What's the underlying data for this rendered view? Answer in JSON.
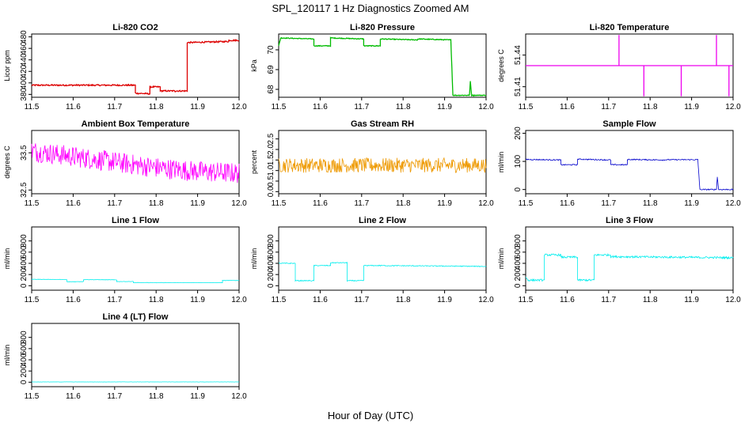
{
  "figure": {
    "title": "SPL_120117  1 Hz Diagnostics Zoomed AM",
    "xlabel": "Hour of Day (UTC)"
  },
  "chart_data": [
    {
      "type": "line",
      "title": "Li-820 CO2",
      "ylabel": "Licor ppm",
      "color": "#dd0000",
      "xlim": [
        11.5,
        12.0
      ],
      "ylim": [
        375,
        485
      ],
      "xticks": [
        11.5,
        11.6,
        11.7,
        11.8,
        11.9,
        12.0
      ],
      "xticklabels": [
        "11.5",
        "11.6",
        "11.7",
        "11.8",
        "11.9",
        "12.0"
      ],
      "yticks": [
        380,
        400,
        420,
        440,
        460,
        480
      ],
      "yticklabels": [
        "380",
        "400",
        "420",
        "440",
        "460",
        "480"
      ],
      "noise": 1.2,
      "x": [
        11.5,
        11.75,
        11.75,
        11.785,
        11.785,
        11.81,
        11.81,
        11.845,
        11.845,
        11.875,
        11.875,
        11.975,
        11.975,
        12.0
      ],
      "y": [
        396,
        396,
        382,
        381,
        393,
        393,
        386,
        386,
        386,
        386,
        470,
        472,
        474,
        474
      ]
    },
    {
      "type": "line",
      "title": "Li-820 Pressure",
      "ylabel": "kPa",
      "color": "#00bb00",
      "xlim": [
        11.5,
        12.0
      ],
      "ylim": [
        67.6,
        70.8
      ],
      "xticks": [
        11.5,
        11.6,
        11.7,
        11.8,
        11.9,
        12.0
      ],
      "xticklabels": [
        "11.5",
        "11.6",
        "11.7",
        "11.8",
        "11.9",
        "12.0"
      ],
      "yticks": [
        68,
        69,
        70
      ],
      "yticklabels": [
        "68",
        "69",
        "70"
      ],
      "noise": 0.02,
      "x": [
        11.5,
        11.505,
        11.585,
        11.585,
        11.625,
        11.625,
        11.705,
        11.705,
        11.745,
        11.745,
        11.835,
        11.835,
        11.915,
        11.92,
        11.96,
        11.962,
        11.965,
        11.97,
        12.0
      ],
      "y": [
        70.2,
        70.6,
        70.55,
        70.2,
        70.2,
        70.6,
        70.55,
        70.2,
        70.2,
        70.55,
        70.5,
        70.55,
        70.5,
        67.7,
        67.7,
        68.4,
        67.7,
        67.7,
        67.7
      ]
    },
    {
      "type": "line",
      "title": "Li-820 Temperature",
      "ylabel": "degrees C",
      "color": "#ee00ee",
      "xlim": [
        11.5,
        12.0
      ],
      "ylim": [
        51.4,
        51.46
      ],
      "xticks": [
        11.5,
        11.6,
        11.7,
        11.8,
        11.9,
        12.0
      ],
      "xticklabels": [
        "11.5",
        "11.6",
        "11.7",
        "11.8",
        "11.9",
        "12.0"
      ],
      "yticks": [
        51.41,
        51.44
      ],
      "yticklabels": [
        "51.41",
        "51.44"
      ],
      "noise": 0,
      "x": [
        11.5,
        11.725,
        11.725,
        11.725,
        11.785,
        11.785,
        11.785,
        11.875,
        11.875,
        11.875,
        11.96,
        11.96,
        11.96,
        11.99,
        11.99,
        11.99,
        12.0
      ],
      "y": [
        51.43,
        51.43,
        51.459,
        51.43,
        51.43,
        51.401,
        51.43,
        51.43,
        51.401,
        51.43,
        51.43,
        51.459,
        51.43,
        51.43,
        51.401,
        51.43,
        51.43
      ]
    },
    {
      "type": "line",
      "title": "Ambient Box Temperature",
      "ylabel": "degrees C",
      "color": "#ff00ff",
      "xlim": [
        11.5,
        12.0
      ],
      "ylim": [
        32.4,
        34.1
      ],
      "xticks": [
        11.5,
        11.6,
        11.7,
        11.8,
        11.9,
        12.0
      ],
      "xticklabels": [
        "11.5",
        "11.6",
        "11.7",
        "11.8",
        "11.9",
        "12.0"
      ],
      "yticks": [
        32.5,
        33.5
      ],
      "yticklabels": [
        "32.5",
        "33.5"
      ],
      "noise": 0.28,
      "x": [
        11.5,
        11.6,
        11.7,
        11.8,
        11.9,
        12.0
      ],
      "y": [
        33.55,
        33.4,
        33.25,
        33.1,
        33.0,
        32.95
      ]
    },
    {
      "type": "line",
      "title": "Gas Stream RH",
      "ylabel": "percent",
      "color": "#ee9900",
      "xlim": [
        11.5,
        12.0
      ],
      "ylim": [
        -0.1,
        2.9
      ],
      "xticks": [
        11.5,
        11.6,
        11.7,
        11.8,
        11.9,
        12.0
      ],
      "xticklabels": [
        "11.5",
        "11.6",
        "11.7",
        "11.8",
        "11.9",
        "12.0"
      ],
      "yticks": [
        0.0,
        0.5,
        1.0,
        1.5,
        2.0,
        2.5
      ],
      "yticklabels": [
        "0.0",
        "0.5",
        "1.0",
        "1.5",
        "2.0",
        "2.5"
      ],
      "noise": 0.35,
      "x": [
        11.5,
        11.6,
        11.7,
        11.8,
        11.9,
        12.0
      ],
      "y": [
        1.25,
        1.25,
        1.25,
        1.25,
        1.25,
        1.25
      ]
    },
    {
      "type": "line",
      "title": "Sample Flow",
      "ylabel": "ml/min",
      "color": "#0000cc",
      "xlim": [
        11.5,
        12.0
      ],
      "ylim": [
        -15,
        210
      ],
      "xticks": [
        11.5,
        11.6,
        11.7,
        11.8,
        11.9,
        12.0
      ],
      "xticklabels": [
        "11.5",
        "11.6",
        "11.7",
        "11.8",
        "11.9",
        "12.0"
      ],
      "yticks": [
        0,
        100,
        200
      ],
      "yticklabels": [
        "0",
        "100",
        "200"
      ],
      "noise": 2,
      "x": [
        11.5,
        11.585,
        11.585,
        11.625,
        11.625,
        11.705,
        11.705,
        11.745,
        11.745,
        11.835,
        11.835,
        11.915,
        11.92,
        11.96,
        11.962,
        11.965,
        12.0
      ],
      "y": [
        107,
        105,
        88,
        88,
        108,
        105,
        88,
        88,
        107,
        105,
        106,
        106,
        0,
        0,
        45,
        0,
        0
      ]
    },
    {
      "type": "line",
      "title": "Line 1 Flow",
      "ylabel": "ml/min",
      "color": "#00eeee",
      "xlim": [
        11.5,
        12.0
      ],
      "ylim": [
        -80,
        1050
      ],
      "xticks": [
        11.5,
        11.6,
        11.7,
        11.8,
        11.9,
        12.0
      ],
      "xticklabels": [
        "11.5",
        "11.6",
        "11.7",
        "11.8",
        "11.9",
        "12.0"
      ],
      "yticks": [
        0,
        200,
        400,
        600,
        800
      ],
      "yticklabels": [
        "0",
        "200",
        "400",
        "600",
        "800"
      ],
      "noise": 3,
      "x": [
        11.5,
        11.585,
        11.585,
        11.625,
        11.625,
        11.705,
        11.705,
        11.745,
        11.745,
        11.96,
        11.96,
        12.0
      ],
      "y": [
        115,
        110,
        70,
        75,
        110,
        105,
        75,
        75,
        55,
        55,
        95,
        95
      ]
    },
    {
      "type": "line",
      "title": "Line 2 Flow",
      "ylabel": "ml/min",
      "color": "#00eeee",
      "xlim": [
        11.5,
        12.0
      ],
      "ylim": [
        -80,
        1050
      ],
      "xticks": [
        11.5,
        11.6,
        11.7,
        11.8,
        11.9,
        12.0
      ],
      "xticklabels": [
        "11.5",
        "11.6",
        "11.7",
        "11.8",
        "11.9",
        "12.0"
      ],
      "yticks": [
        0,
        200,
        400,
        600,
        800
      ],
      "yticklabels": [
        "0",
        "200",
        "400",
        "600",
        "800"
      ],
      "noise": 8,
      "x": [
        11.5,
        11.54,
        11.54,
        11.585,
        11.585,
        11.625,
        11.625,
        11.665,
        11.665,
        11.705,
        11.705,
        11.745,
        11.745,
        12.0
      ],
      "y": [
        400,
        400,
        90,
        90,
        360,
        360,
        410,
        410,
        90,
        90,
        360,
        360,
        360,
        345
      ]
    },
    {
      "type": "line",
      "title": "Line 3 Flow",
      "ylabel": "ml/min",
      "color": "#00eeee",
      "xlim": [
        11.5,
        12.0
      ],
      "ylim": [
        -80,
        1050
      ],
      "xticks": [
        11.5,
        11.6,
        11.7,
        11.8,
        11.9,
        12.0
      ],
      "xticklabels": [
        "11.5",
        "11.6",
        "11.7",
        "11.8",
        "11.9",
        "12.0"
      ],
      "yticks": [
        0,
        200,
        400,
        600,
        800
      ],
      "yticklabels": [
        "0",
        "200",
        "400",
        "600",
        "800"
      ],
      "noise": 18,
      "x": [
        11.5,
        11.505,
        11.505,
        11.545,
        11.545,
        11.585,
        11.585,
        11.625,
        11.625,
        11.665,
        11.665,
        11.705,
        11.705,
        12.0
      ],
      "y": [
        160,
        100,
        100,
        100,
        550,
        550,
        510,
        510,
        100,
        100,
        550,
        550,
        520,
        500
      ]
    },
    {
      "type": "line",
      "title": "Line 4 (LT) Flow",
      "ylabel": "ml/min",
      "color": "#00eeee",
      "xlim": [
        11.5,
        12.0
      ],
      "ylim": [
        -80,
        1050
      ],
      "xticks": [
        11.5,
        11.6,
        11.7,
        11.8,
        11.9,
        12.0
      ],
      "xticklabels": [
        "11.5",
        "11.6",
        "11.7",
        "11.8",
        "11.9",
        "12.0"
      ],
      "yticks": [
        0,
        200,
        400,
        600,
        800
      ],
      "yticklabels": [
        "0",
        "200",
        "400",
        "600",
        "800"
      ],
      "noise": 1.5,
      "x": [
        11.5,
        12.0
      ],
      "y": [
        5,
        5
      ]
    }
  ]
}
